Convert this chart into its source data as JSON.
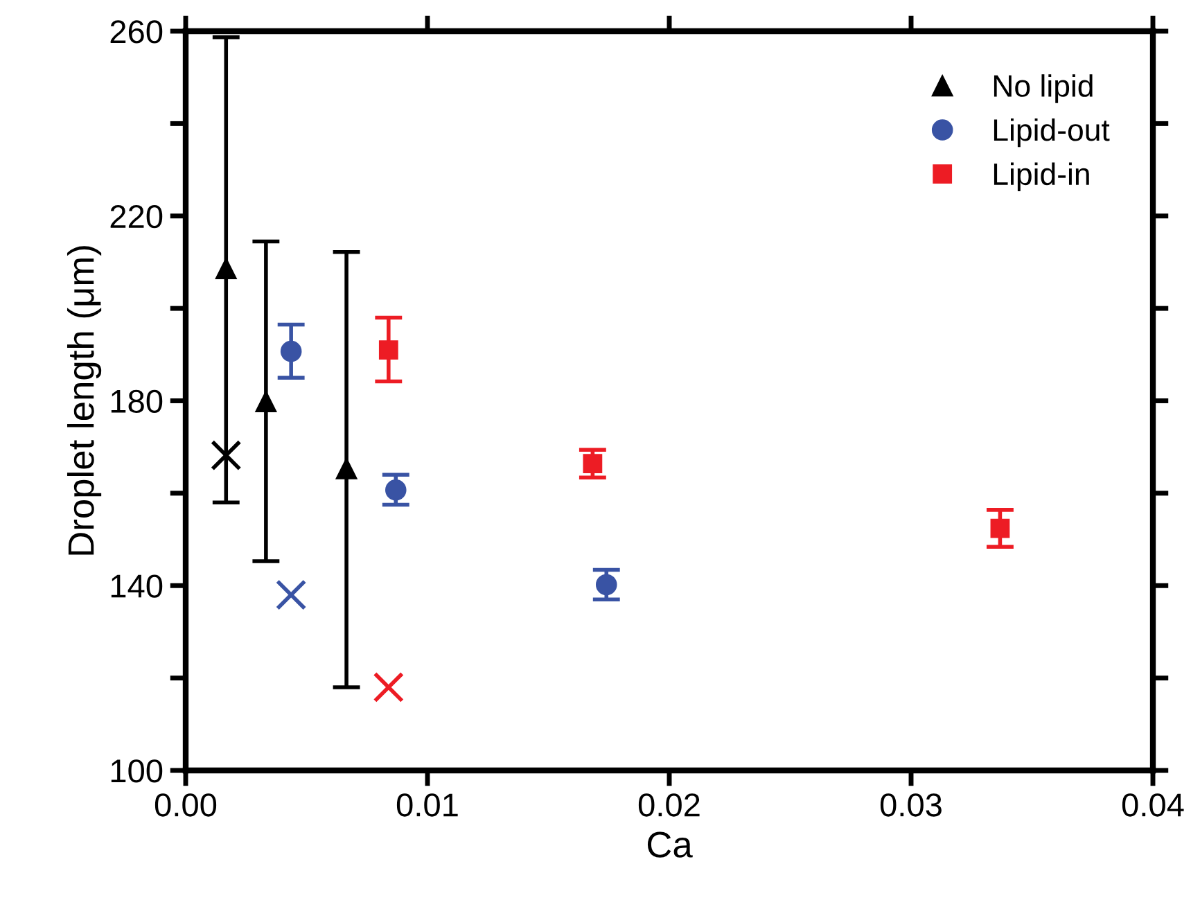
{
  "chart_data": {
    "type": "scatter",
    "xlabel": "Ca",
    "ylabel": "Droplet length (μm)",
    "xlim": [
      0,
      0.04
    ],
    "xticks": [
      {
        "value": 0,
        "label": "0.00"
      },
      0.01,
      0.02,
      0.03,
      0.04
    ],
    "ylim": [
      100,
      260
    ],
    "yticks": [
      100,
      {
        "value": 120,
        "label": null
      },
      140,
      {
        "value": 160,
        "label": null
      },
      180,
      {
        "value": 200,
        "label": null
      },
      220,
      {
        "value": 240,
        "label": null
      },
      260
    ],
    "grid": false,
    "legend": "top right",
    "series": [
      {
        "name": "No lipid",
        "color": "#000000",
        "marker": "triangle",
        "x": [
          0.00167,
          0.00332,
          0.00665
        ],
        "values": [
          208.6,
          179.8,
          165.3
        ],
        "errors": [
          [
            158,
            258.7
          ],
          [
            145.3,
            214.5
          ],
          [
            118,
            212.2
          ]
        ]
      },
      {
        "name": "Lipid-out",
        "color": "#3953a4",
        "marker": "circle",
        "x": [
          0.00436,
          0.00869,
          0.0174
        ],
        "values": [
          190.7,
          160.7,
          140.2
        ],
        "errors": [
          [
            185,
            196.5
          ],
          [
            157.5,
            164
          ],
          [
            137,
            143.4
          ]
        ]
      },
      {
        "name": "Lipid-in",
        "color": "#ed1c24",
        "marker": "square",
        "x": [
          0.00839,
          0.01683,
          0.03368
        ],
        "values": [
          191,
          166.4,
          152.4
        ],
        "errors": [
          [
            184.2,
            198
          ],
          [
            163.4,
            169.4
          ],
          [
            148.4,
            156.4
          ]
        ]
      },
      {
        "color": "#000000",
        "marker": "cross",
        "x": [
          0.00167
        ],
        "values": [
          168.2
        ]
      },
      {
        "color": "#3953a4",
        "marker": "cross",
        "x": [
          0.00436
        ],
        "values": [
          138
        ]
      },
      {
        "color": "#ed1c24",
        "marker": "cross",
        "x": [
          0.00839
        ],
        "values": [
          118
        ]
      }
    ]
  }
}
